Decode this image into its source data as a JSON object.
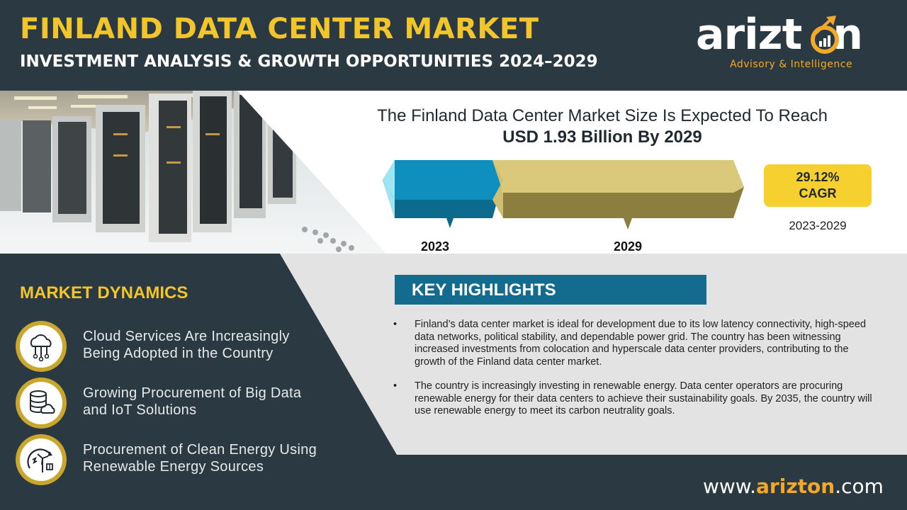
{
  "header": {
    "title": "FINLAND DATA CENTER MARKET",
    "subtitle": "INVESTMENT ANALYSIS & GROWTH OPPORTUNITIES 2024–2029"
  },
  "logo": {
    "word_left": "arizt",
    "word_right": "n",
    "tagline": "Advisory & Intelligence",
    "icon": "growth-chart-o-icon"
  },
  "market_size": {
    "line1": "The Finland Data Center Market Size  Is Expected To Reach",
    "line2": "USD 1.93 Billion By 2029",
    "start_year": "2023",
    "end_year": "2029",
    "cagr_value": "29.12%",
    "cagr_label": "CAGR",
    "cagr_period": "2023-2029"
  },
  "dynamics": {
    "title": "MARKET DYNAMICS",
    "items": [
      {
        "line1": "Cloud Services Are Increasingly",
        "line2": "Being Adopted in the Country",
        "icon": "cloud-network-icon"
      },
      {
        "line1": "Growing Procurement of Big Data",
        "line2": "and IoT Solutions",
        "icon": "database-cloud-icon"
      },
      {
        "line1": "Procurement of Clean Energy Using",
        "line2": "Renewable Energy Sources",
        "icon": "renewable-energy-icon"
      }
    ]
  },
  "highlights": {
    "title": "KEY HIGHLIGHTS",
    "bullets": [
      "Finland’s data center market is ideal for development  due to its low latency connectivity, high-speed data networks, political stability, and dependable power grid. The country has been witnessing increased investments from colocation  and hyperscale data center providers, contributing to the growth of the Finland data center market.",
      "The country is increasingly investing in renewable energy. Data center operators are procuring renewable energy for their data centers to achieve their sustainability goals. By 2035, the country will use renewable energy to meet its carbon neutrality goals."
    ]
  },
  "footer": {
    "url_prefix": "www.",
    "url_brand": "arizton",
    "url_suffix": ".com"
  },
  "colors": {
    "dark": "#2b3a42",
    "gold": "#f2c52b",
    "orange": "#f2a92b",
    "teal": "#136c8f",
    "grey": "#e3e3e3"
  }
}
